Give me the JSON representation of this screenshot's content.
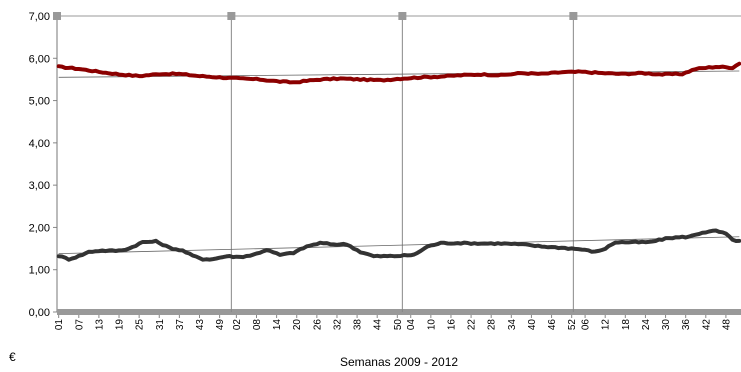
{
  "chart_data": {
    "type": "line",
    "xlabel": "Semanas 2009 - 2012",
    "ylabel": "€",
    "ylim": [
      0,
      7
    ],
    "yticks": [
      "0,00",
      "1,00",
      "2,00",
      "3,00",
      "4,00",
      "5,00",
      "6,00",
      "7,00"
    ],
    "grid": false,
    "year_boundaries_after_week_index": [
      51,
      102,
      153
    ],
    "x_tick_labels": [
      "01",
      "07",
      "13",
      "19",
      "25",
      "31",
      "37",
      "43",
      "49",
      "02",
      "08",
      "14",
      "20",
      "26",
      "32",
      "38",
      "44",
      "50",
      "04",
      "10",
      "16",
      "22",
      "28",
      "34",
      "40",
      "46",
      "52",
      "06",
      "12",
      "18",
      "24",
      "30",
      "36",
      "42",
      "48"
    ],
    "x_tick_indices": [
      0,
      6,
      12,
      18,
      24,
      30,
      36,
      42,
      48,
      53,
      59,
      65,
      71,
      77,
      83,
      89,
      95,
      101,
      105,
      111,
      117,
      123,
      129,
      135,
      141,
      147,
      153,
      157,
      163,
      169,
      175,
      181,
      187,
      193,
      199
    ],
    "series": [
      {
        "color": "#8b0000",
        "anchors": [
          [
            0,
            5.8
          ],
          [
            6,
            5.75
          ],
          [
            12,
            5.68
          ],
          [
            18,
            5.62
          ],
          [
            24,
            5.58
          ],
          [
            30,
            5.63
          ],
          [
            36,
            5.63
          ],
          [
            42,
            5.58
          ],
          [
            48,
            5.55
          ],
          [
            54,
            5.52
          ],
          [
            60,
            5.5
          ],
          [
            66,
            5.45
          ],
          [
            70,
            5.43
          ],
          [
            78,
            5.5
          ],
          [
            84,
            5.52
          ],
          [
            90,
            5.5
          ],
          [
            96,
            5.48
          ],
          [
            102,
            5.52
          ],
          [
            108,
            5.55
          ],
          [
            114,
            5.57
          ],
          [
            120,
            5.6
          ],
          [
            126,
            5.62
          ],
          [
            132,
            5.6
          ],
          [
            138,
            5.65
          ],
          [
            144,
            5.63
          ],
          [
            150,
            5.67
          ],
          [
            156,
            5.68
          ],
          [
            162,
            5.65
          ],
          [
            168,
            5.63
          ],
          [
            174,
            5.65
          ],
          [
            180,
            5.62
          ],
          [
            186,
            5.63
          ],
          [
            190,
            5.75
          ],
          [
            196,
            5.8
          ],
          [
            201,
            5.78
          ],
          [
            203,
            5.88
          ]
        ]
      },
      {
        "color": "#333333",
        "anchors": [
          [
            0,
            1.33
          ],
          [
            3,
            1.25
          ],
          [
            6,
            1.32
          ],
          [
            9,
            1.42
          ],
          [
            12,
            1.45
          ],
          [
            18,
            1.45
          ],
          [
            21,
            1.5
          ],
          [
            25,
            1.65
          ],
          [
            29,
            1.67
          ],
          [
            33,
            1.52
          ],
          [
            37,
            1.45
          ],
          [
            40,
            1.33
          ],
          [
            43,
            1.25
          ],
          [
            46,
            1.25
          ],
          [
            50,
            1.32
          ],
          [
            54,
            1.3
          ],
          [
            58,
            1.35
          ],
          [
            62,
            1.47
          ],
          [
            66,
            1.35
          ],
          [
            70,
            1.4
          ],
          [
            74,
            1.55
          ],
          [
            78,
            1.63
          ],
          [
            82,
            1.6
          ],
          [
            86,
            1.6
          ],
          [
            90,
            1.42
          ],
          [
            94,
            1.32
          ],
          [
            98,
            1.32
          ],
          [
            102,
            1.33
          ],
          [
            106,
            1.35
          ],
          [
            110,
            1.55
          ],
          [
            114,
            1.63
          ],
          [
            120,
            1.63
          ],
          [
            126,
            1.62
          ],
          [
            132,
            1.62
          ],
          [
            138,
            1.6
          ],
          [
            144,
            1.55
          ],
          [
            150,
            1.52
          ],
          [
            156,
            1.48
          ],
          [
            160,
            1.42
          ],
          [
            163,
            1.5
          ],
          [
            166,
            1.65
          ],
          [
            170,
            1.65
          ],
          [
            176,
            1.65
          ],
          [
            182,
            1.75
          ],
          [
            188,
            1.78
          ],
          [
            192,
            1.88
          ],
          [
            196,
            1.92
          ],
          [
            199,
            1.85
          ],
          [
            201,
            1.7
          ],
          [
            203,
            1.68
          ]
        ]
      }
    ],
    "trendlines": [
      {
        "color": "#666666",
        "start": 5.55,
        "end": 5.7
      },
      {
        "color": "#666666",
        "start": 1.38,
        "end": 1.78
      }
    ]
  }
}
